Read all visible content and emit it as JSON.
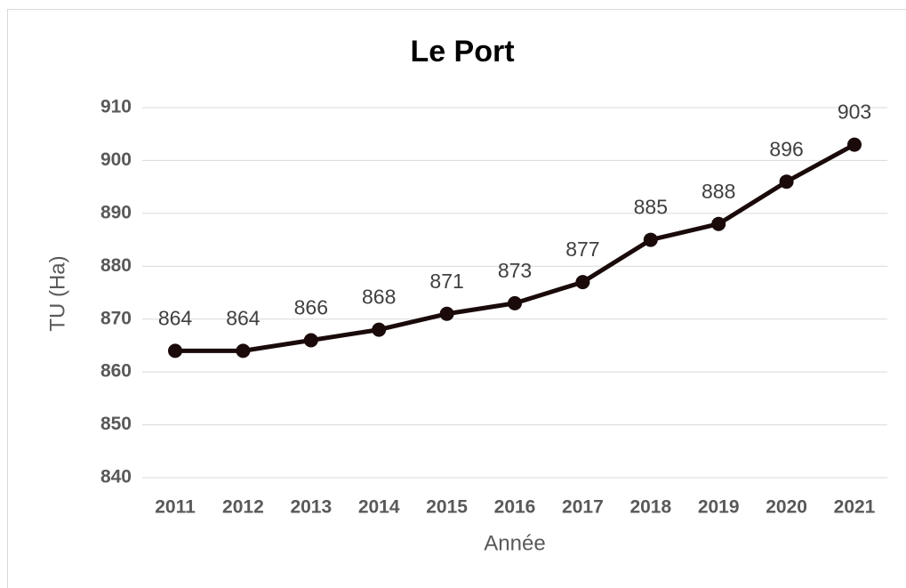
{
  "chart_data": {
    "type": "line",
    "title": "Le Port",
    "x_label": "Année",
    "y_label": "TU (Ha)",
    "categories": [
      "2011",
      "2012",
      "2013",
      "2014",
      "2015",
      "2016",
      "2017",
      "2018",
      "2019",
      "2020",
      "2021"
    ],
    "series": [
      {
        "name": "TU (Ha)",
        "color": "#1a0a0a",
        "values": [
          864,
          864,
          866,
          868,
          871,
          873,
          877,
          885,
          888,
          896,
          903
        ]
      }
    ],
    "ylim": [
      840,
      910
    ],
    "yticks": [
      840,
      850,
      860,
      870,
      880,
      890,
      900,
      910
    ],
    "grid": true
  }
}
